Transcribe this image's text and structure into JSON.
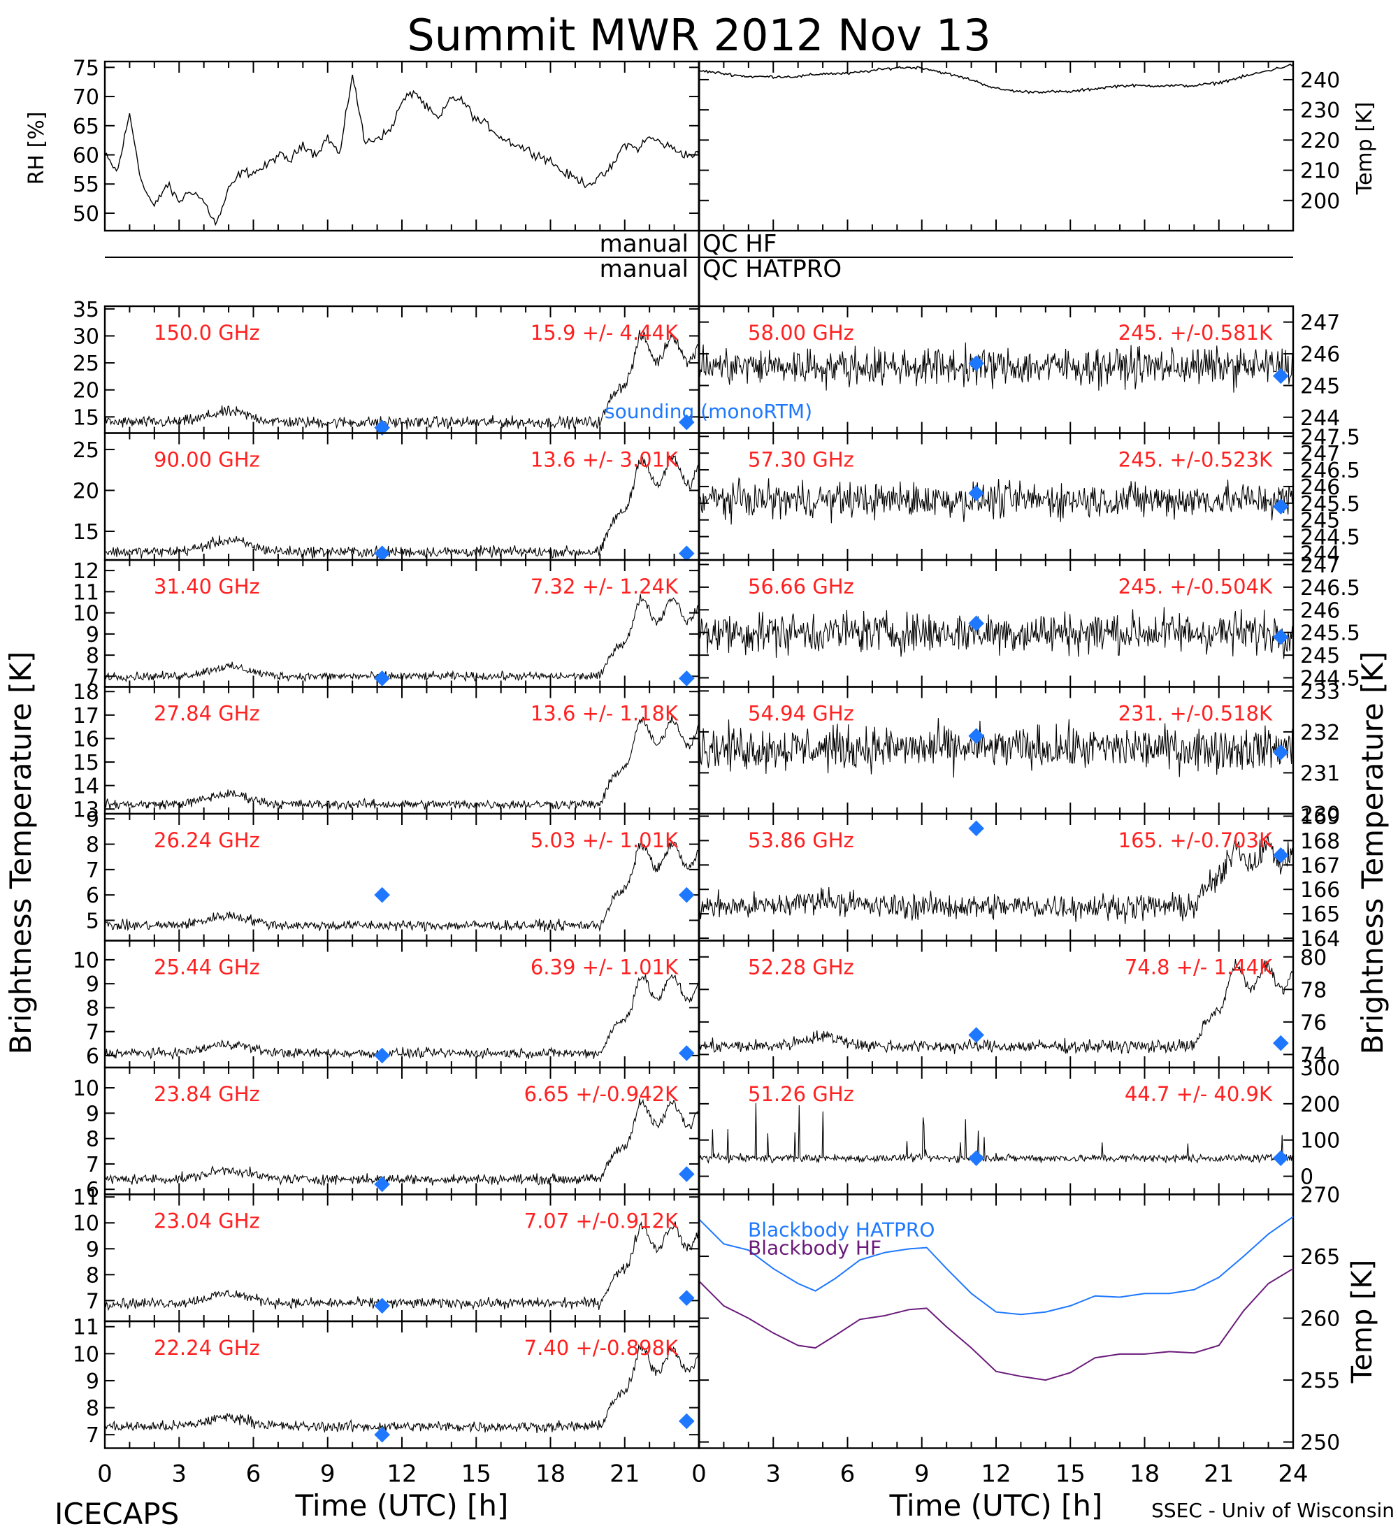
{
  "title": "Summit MWR 2012 Nov 13",
  "footer_left": "ICECAPS",
  "footer_right": "SSEC - Univ of Wisconsin",
  "xlabel": "Time (UTC) [h]",
  "ylabel_left": "Brightness Temperature [K]",
  "ylabel_right": "Brightness Temperature [K]",
  "qc_left_word": "manual",
  "qc_hf": "QC HF",
  "qc_hatpro": "QC HATPRO",
  "sounding_label": "sounding (monoRTM)",
  "colors": {
    "data": "#000000",
    "label": "#ff2020",
    "sounding": "#1e78ff",
    "bb_hatpro": "#1e78ff",
    "bb_hf": "#6a1b7a"
  },
  "chart_data": [
    {
      "id": "rh",
      "type": "line",
      "ylabel": "RH [%]",
      "xlim": [
        0,
        24
      ],
      "ylim": [
        47,
        76
      ],
      "yticks": [
        50,
        55,
        60,
        65,
        70,
        75
      ],
      "x": [
        0,
        0.5,
        1,
        1.5,
        2,
        2.5,
        3,
        3.5,
        4,
        4.5,
        5,
        5.5,
        6,
        6.5,
        7,
        7.5,
        8,
        8.5,
        9,
        9.5,
        10,
        10.5,
        11,
        11.5,
        12,
        12.5,
        13,
        13.5,
        14,
        14.5,
        15,
        15.5,
        16,
        16.5,
        17,
        17.5,
        18,
        18.5,
        19,
        19.5,
        20,
        20.5,
        21,
        21.5,
        22,
        22.5,
        23,
        23.5,
        24
      ],
      "y": [
        60,
        57,
        67,
        55,
        51,
        55,
        52,
        54,
        52,
        48,
        54,
        57,
        57,
        58,
        60,
        59,
        62,
        60,
        63,
        60,
        74,
        62,
        63,
        64,
        69,
        71,
        68,
        66,
        70,
        69,
        66,
        65,
        63,
        62,
        61,
        60,
        59,
        57,
        56,
        55,
        56,
        58,
        62,
        61,
        63,
        62,
        61,
        60,
        60
      ]
    },
    {
      "id": "temp",
      "type": "line",
      "ylabel": "Temp [K]",
      "xlim": [
        0,
        24
      ],
      "ylim": [
        190,
        246
      ],
      "yticks": [
        200,
        210,
        220,
        230,
        240
      ],
      "x": [
        0,
        1,
        2,
        3,
        4,
        5,
        6,
        7,
        8,
        9,
        10,
        11,
        12,
        13,
        14,
        15,
        16,
        17,
        18,
        19,
        20,
        21,
        22,
        23,
        24
      ],
      "y": [
        243,
        242,
        241,
        241,
        241,
        242,
        242,
        243,
        244,
        244,
        242,
        240,
        237,
        236,
        236,
        236,
        237,
        238,
        238,
        238,
        238,
        239,
        241,
        243,
        245
      ]
    },
    {
      "id": "ch150",
      "side": "left",
      "freq": "150.0 GHz",
      "stats": "15.9 +/-  4.44K",
      "ylim": [
        12,
        35.5
      ],
      "yticks": [
        15,
        20,
        25,
        30,
        35
      ],
      "base": 14,
      "peak": 30,
      "noise": 0.8,
      "sounding": [
        [
          11.2,
          13
        ],
        [
          23.5,
          14
        ]
      ]
    },
    {
      "id": "ch90",
      "side": "left",
      "freq": "90.00 GHz",
      "stats": "13.6 +/-  3.01K",
      "ylim": [
        11.5,
        27
      ],
      "yticks": [
        15,
        20,
        25
      ],
      "base": 12.5,
      "peak": 24,
      "noise": 0.5,
      "sounding": [
        [
          11.2,
          12.3
        ],
        [
          23.5,
          12.3
        ]
      ]
    },
    {
      "id": "ch31",
      "side": "left",
      "freq": "31.40 GHz",
      "stats": "7.32 +/- 1.24K",
      "ylim": [
        6.5,
        12.5
      ],
      "yticks": [
        7,
        8,
        9,
        10,
        11,
        12
      ],
      "base": 7.0,
      "peak": 10.7,
      "noise": 0.15,
      "sounding": [
        [
          11.2,
          6.9
        ],
        [
          23.5,
          6.9
        ]
      ]
    },
    {
      "id": "ch2784",
      "side": "left",
      "freq": "27.84 GHz",
      "stats": "13.6 +/- 1.18K",
      "ylim": [
        12.8,
        18.2
      ],
      "yticks": [
        13,
        14,
        15,
        16,
        17,
        18
      ],
      "base": 13.2,
      "peak": 16.8,
      "noise": 0.15,
      "sounding": []
    },
    {
      "id": "ch2624",
      "side": "left",
      "freq": "26.24 GHz",
      "stats": "5.03 +/- 1.01K",
      "ylim": [
        4.2,
        9.2
      ],
      "yticks": [
        5,
        6,
        7,
        8,
        9
      ],
      "base": 4.8,
      "peak": 8.0,
      "noise": 0.15,
      "sounding": [
        [
          11.2,
          6.0
        ],
        [
          23.5,
          6.0
        ]
      ]
    },
    {
      "id": "ch2544",
      "side": "left",
      "freq": "25.44 GHz",
      "stats": "6.39 +/- 1.01K",
      "ylim": [
        5.5,
        10.8
      ],
      "yticks": [
        6,
        7,
        8,
        9,
        10
      ],
      "base": 6.1,
      "peak": 9.3,
      "noise": 0.15,
      "sounding": [
        [
          11.2,
          6.0
        ],
        [
          23.5,
          6.1
        ]
      ]
    },
    {
      "id": "ch2384",
      "side": "left",
      "freq": "23.84 GHz",
      "stats": "6.65 +/-0.942K",
      "ylim": [
        5.8,
        10.8
      ],
      "yticks": [
        6,
        7,
        8,
        9,
        10
      ],
      "base": 6.4,
      "peak": 9.4,
      "noise": 0.15,
      "sounding": [
        [
          11.2,
          6.2
        ],
        [
          23.5,
          6.6
        ]
      ]
    },
    {
      "id": "ch2304",
      "side": "left",
      "freq": "23.04 GHz",
      "stats": "7.07 +/-0.912K",
      "ylim": [
        6.2,
        11.1
      ],
      "yticks": [
        7,
        8,
        9,
        10,
        11
      ],
      "base": 6.9,
      "peak": 9.9,
      "noise": 0.15,
      "sounding": [
        [
          11.2,
          6.8
        ],
        [
          23.5,
          7.1
        ]
      ]
    },
    {
      "id": "ch2224",
      "side": "left",
      "freq": "22.24 GHz",
      "stats": "7.40 +/-0.898K",
      "ylim": [
        6.5,
        11.2
      ],
      "yticks": [
        7,
        8,
        9,
        10,
        11
      ],
      "base": 7.3,
      "peak": 10.2,
      "noise": 0.15,
      "sounding": [
        [
          11.2,
          7.0
        ],
        [
          23.5,
          7.5
        ]
      ]
    },
    {
      "id": "ch58",
      "side": "right",
      "freq": "58.00 GHz",
      "stats": "245. +/-0.581K",
      "ylim": [
        243.5,
        247.5
      ],
      "yticks": [
        244,
        245,
        246,
        247
      ],
      "base": 245.6,
      "noise": 0.45,
      "sounding": [
        [
          11.2,
          245.7
        ],
        [
          23.5,
          245.3
        ]
      ]
    },
    {
      "id": "ch5730",
      "side": "right",
      "freq": "57.30 GHz",
      "stats": "245. +/-0.523K",
      "ylim": [
        243.8,
        247.6
      ],
      "yticks": [
        244,
        244.5,
        245,
        245.5,
        246,
        246.5,
        247,
        247.5
      ],
      "base": 245.6,
      "noise": 0.4,
      "sounding": [
        [
          11.2,
          245.8
        ],
        [
          23.5,
          245.4
        ]
      ]
    },
    {
      "id": "ch5666",
      "side": "right",
      "freq": "56.66 GHz",
      "stats": "245. +/-0.504K",
      "ylim": [
        244.3,
        247.1
      ],
      "yticks": [
        244.5,
        245,
        245.5,
        246,
        246.5,
        247
      ],
      "base": 245.5,
      "noise": 0.35,
      "sounding": [
        [
          11.2,
          245.7
        ],
        [
          23.5,
          245.4
        ]
      ]
    },
    {
      "id": "ch5494",
      "side": "right",
      "freq": "54.94 GHz",
      "stats": "231. +/-0.518K",
      "ylim": [
        230,
        233.1
      ],
      "yticks": [
        230,
        231,
        232,
        233
      ],
      "base": 231.6,
      "noise": 0.4,
      "sounding": [
        [
          11.2,
          231.9
        ],
        [
          23.5,
          231.5
        ]
      ]
    },
    {
      "id": "ch5386",
      "side": "right",
      "freq": "53.86 GHz",
      "stats": "165. +/-0.703K",
      "ylim": [
        163.9,
        169.1
      ],
      "yticks": [
        164,
        165,
        166,
        167,
        168,
        169
      ],
      "base": 165.3,
      "peak": 167.8,
      "noise": 0.4,
      "sounding": [
        [
          11.2,
          168.5
        ],
        [
          23.5,
          167.4
        ]
      ]
    },
    {
      "id": "ch5228",
      "side": "right",
      "freq": "52.28 GHz",
      "stats": "74.8 +/- 1.44K",
      "ylim": [
        73.2,
        81
      ],
      "yticks": [
        74,
        76,
        78,
        80
      ],
      "base": 74.5,
      "peak": 79.5,
      "noise": 0.3,
      "sounding": [
        [
          11.2,
          75.2
        ],
        [
          23.5,
          74.7
        ]
      ]
    },
    {
      "id": "ch5126",
      "side": "right",
      "freq": "51.26 GHz",
      "stats": "44.7 +/- 40.9K",
      "ylim": [
        -50,
        300
      ],
      "yticks": [
        0,
        100,
        200,
        300
      ],
      "base": 50,
      "noise": 8,
      "sounding": [
        [
          11.2,
          50
        ],
        [
          23.5,
          50
        ]
      ]
    },
    {
      "id": "blackbody",
      "type": "line",
      "ylabel": "Temp [K]",
      "xlim": [
        0,
        24
      ],
      "ylim": [
        249.5,
        270
      ],
      "yticks": [
        250,
        255,
        260,
        265,
        270
      ],
      "xticks": [
        0,
        3,
        6,
        9,
        12,
        15,
        18,
        21,
        24
      ],
      "series": [
        {
          "name": "Blackbody HATPRO",
          "x": [
            0,
            1,
            2,
            3,
            4,
            4.7,
            5.5,
            6.5,
            7.5,
            8.5,
            9.2,
            10,
            11,
            12,
            13,
            14,
            15,
            16,
            17,
            18,
            19,
            20,
            21,
            22,
            23,
            24
          ],
          "y": [
            268,
            266,
            265.5,
            264,
            262.8,
            262.2,
            263.2,
            264.7,
            265.3,
            265.6,
            265.7,
            264,
            262,
            260.5,
            260.3,
            260.5,
            261,
            261.8,
            261.7,
            262,
            262,
            262.3,
            263.3,
            265,
            266.8,
            268.2
          ]
        },
        {
          "name": "Blackbody HF",
          "x": [
            0,
            1,
            2,
            3,
            4,
            4.7,
            5.5,
            6.5,
            7.5,
            8.5,
            9.2,
            10,
            11,
            12,
            13,
            14,
            15,
            16,
            17,
            18,
            19,
            20,
            21,
            22,
            23,
            24
          ],
          "y": [
            263,
            261,
            260,
            258.8,
            257.8,
            257.6,
            258.6,
            259.9,
            260.2,
            260.7,
            260.8,
            259.3,
            257.6,
            255.7,
            255.3,
            255,
            255.6,
            256.8,
            257.1,
            257.1,
            257.3,
            257.2,
            257.8,
            260.6,
            262.8,
            264
          ]
        }
      ]
    }
  ]
}
